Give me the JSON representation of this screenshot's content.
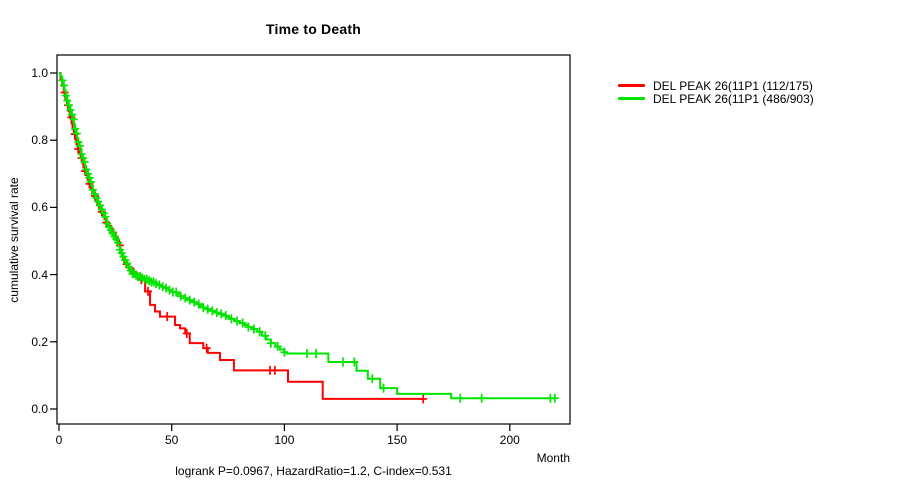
{
  "figure": {
    "title": "Time to Death",
    "background_color": "#ffffff",
    "axis_color": "#000000"
  },
  "chart_data": {
    "type": "line",
    "style": "kaplan-meier-step",
    "title": "Time to Death",
    "xlabel": "Month",
    "ylabel": "cumulative survival rate",
    "annotation": "logrank P=0.0967, HazardRatio=1.2, C-index=0.531",
    "xlim": [
      0,
      227
    ],
    "ylim": [
      0,
      1
    ],
    "x_tick_values": [
      0,
      50,
      100,
      150,
      200
    ],
    "x_tick_labels": [
      "0",
      "50",
      "100",
      "150",
      "200"
    ],
    "y_tick_values": [
      0,
      0.2,
      0.4,
      0.6,
      0.8,
      1
    ],
    "y_tick_labels": [
      "0.0",
      "0.2",
      "0.4",
      "0.6",
      "0.8",
      "1.0"
    ],
    "grid": false,
    "legend_position": "right-outside",
    "series": [
      {
        "name": "DEL PEAK 26(11P1 (112/175)",
        "color": "#ff0000",
        "events_total": "112/175",
        "end_month": 161.6,
        "steps": [
          [
            0,
            1.0
          ],
          [
            0.7,
            0.98
          ],
          [
            1.4,
            0.962
          ],
          [
            2.1,
            0.942
          ],
          [
            2.8,
            0.922
          ],
          [
            3.5,
            0.904
          ],
          [
            4.2,
            0.886
          ],
          [
            4.9,
            0.868
          ],
          [
            5.6,
            0.85
          ],
          [
            6,
            0.833
          ],
          [
            6.6,
            0.818
          ],
          [
            7.2,
            0.803
          ],
          [
            7.8,
            0.788
          ],
          [
            8.4,
            0.774
          ],
          [
            9,
            0.76
          ],
          [
            9.6,
            0.747
          ],
          [
            10.2,
            0.734
          ],
          [
            10.8,
            0.721
          ],
          [
            11.4,
            0.708
          ],
          [
            12,
            0.696
          ],
          [
            12.7,
            0.683
          ],
          [
            13.4,
            0.67
          ],
          [
            14.1,
            0.658
          ],
          [
            14.8,
            0.646
          ],
          [
            15.5,
            0.634
          ],
          [
            16.2,
            0.622
          ],
          [
            17,
            0.61
          ],
          [
            17.8,
            0.598
          ],
          [
            18.6,
            0.587
          ],
          [
            19.4,
            0.576
          ],
          [
            20.2,
            0.565
          ],
          [
            21,
            0.555
          ],
          [
            22,
            0.545
          ],
          [
            23,
            0.535
          ],
          [
            24,
            0.525
          ],
          [
            25,
            0.513
          ],
          [
            26,
            0.5
          ],
          [
            26.6,
            0.487
          ],
          [
            27.2,
            0.473
          ],
          [
            27.8,
            0.459
          ],
          [
            28.4,
            0.445
          ],
          [
            29,
            0.431
          ],
          [
            30.3,
            0.423
          ],
          [
            31.6,
            0.415
          ],
          [
            33,
            0.408
          ],
          [
            34,
            0.4
          ],
          [
            36,
            0.385
          ],
          [
            38.2,
            0.35
          ],
          [
            40.4,
            0.31
          ],
          [
            42.6,
            0.29
          ],
          [
            44.8,
            0.275
          ],
          [
            51.5,
            0.25
          ],
          [
            53.7,
            0.24
          ],
          [
            56,
            0.225
          ],
          [
            58,
            0.196
          ],
          [
            64,
            0.181
          ],
          [
            66,
            0.167
          ],
          [
            71.4,
            0.146
          ],
          [
            77.6,
            0.115
          ],
          [
            101.6,
            0.081
          ],
          [
            117,
            0.03
          ]
        ],
        "censor_months": [
          2.5,
          4,
          5.5,
          7,
          8.5,
          10,
          11.5,
          13.5,
          16,
          19,
          21,
          24,
          27,
          30,
          33,
          36.5,
          39.5,
          48,
          56.7,
          65.5,
          93.6,
          95.8,
          161.6
        ]
      },
      {
        "name": "DEL PEAK 26(11P1 (486/903)",
        "color": "#00e500",
        "events_total": "486/903",
        "end_month": 220,
        "steps": [
          [
            0,
            1.0
          ],
          [
            0.6,
            0.99
          ],
          [
            1.2,
            0.978
          ],
          [
            1.8,
            0.963
          ],
          [
            2.4,
            0.948
          ],
          [
            3,
            0.933
          ],
          [
            3.6,
            0.918
          ],
          [
            4.2,
            0.904
          ],
          [
            4.8,
            0.89
          ],
          [
            5.4,
            0.876
          ],
          [
            6,
            0.862
          ],
          [
            6.6,
            0.848
          ],
          [
            7,
            0.834
          ],
          [
            7.5,
            0.82
          ],
          [
            8,
            0.807
          ],
          [
            8.5,
            0.795
          ],
          [
            9,
            0.783
          ],
          [
            9.5,
            0.771
          ],
          [
            10,
            0.759
          ],
          [
            10.5,
            0.747
          ],
          [
            11,
            0.735
          ],
          [
            11.5,
            0.724
          ],
          [
            12,
            0.713
          ],
          [
            12.6,
            0.7
          ],
          [
            13.2,
            0.688
          ],
          [
            13.8,
            0.676
          ],
          [
            14.4,
            0.664
          ],
          [
            15,
            0.652
          ],
          [
            15.7,
            0.64
          ],
          [
            16.4,
            0.628
          ],
          [
            17.1,
            0.617
          ],
          [
            17.8,
            0.606
          ],
          [
            18.6,
            0.594
          ],
          [
            19.3,
            0.583
          ],
          [
            20,
            0.572
          ],
          [
            20.7,
            0.562
          ],
          [
            21.4,
            0.552
          ],
          [
            22.1,
            0.542
          ],
          [
            22.8,
            0.532
          ],
          [
            23.5,
            0.523
          ],
          [
            24.2,
            0.514
          ],
          [
            24.9,
            0.505
          ],
          [
            25.6,
            0.495
          ],
          [
            26.3,
            0.485
          ],
          [
            27,
            0.474
          ],
          [
            27.7,
            0.464
          ],
          [
            28.4,
            0.453
          ],
          [
            29.1,
            0.443
          ],
          [
            29.8,
            0.433
          ],
          [
            30.5,
            0.423
          ],
          [
            31.2,
            0.412
          ],
          [
            31.9,
            0.403
          ],
          [
            33.5,
            0.398
          ],
          [
            35,
            0.394
          ],
          [
            36.5,
            0.39
          ],
          [
            38,
            0.386
          ],
          [
            39.5,
            0.382
          ],
          [
            41,
            0.378
          ],
          [
            42.5,
            0.373
          ],
          [
            44,
            0.369
          ],
          [
            45.5,
            0.364
          ],
          [
            47,
            0.36
          ],
          [
            48.7,
            0.354
          ],
          [
            50.4,
            0.348
          ],
          [
            52.1,
            0.342
          ],
          [
            53.8,
            0.336
          ],
          [
            55.5,
            0.33
          ],
          [
            57.2,
            0.324
          ],
          [
            58.9,
            0.318
          ],
          [
            60.6,
            0.312
          ],
          [
            62.3,
            0.307
          ],
          [
            64,
            0.302
          ],
          [
            65.7,
            0.297
          ],
          [
            67.4,
            0.292
          ],
          [
            69.1,
            0.287
          ],
          [
            70.8,
            0.283
          ],
          [
            72.5,
            0.278
          ],
          [
            74.2,
            0.273
          ],
          [
            76,
            0.268
          ],
          [
            78,
            0.262
          ],
          [
            80,
            0.256
          ],
          [
            82,
            0.25
          ],
          [
            84,
            0.244
          ],
          [
            86,
            0.238
          ],
          [
            88,
            0.23
          ],
          [
            90,
            0.218
          ],
          [
            92,
            0.207
          ],
          [
            94,
            0.196
          ],
          [
            96,
            0.186
          ],
          [
            98,
            0.177
          ],
          [
            100,
            0.169
          ],
          [
            101,
            0.165
          ],
          [
            119.5,
            0.14
          ],
          [
            132,
            0.114
          ],
          [
            137,
            0.09
          ],
          [
            142.5,
            0.062
          ],
          [
            150,
            0.045
          ],
          [
            174,
            0.032
          ]
        ],
        "censor_months": [
          1.5,
          2.2,
          3,
          3.7,
          4.4,
          5.1,
          5.8,
          6.5,
          7.2,
          7.9,
          8.6,
          9.3,
          10,
          10.7,
          11.4,
          12.1,
          12.8,
          13.5,
          14.2,
          15,
          15.8,
          16.6,
          17.4,
          18.2,
          19,
          19.8,
          20.6,
          21.4,
          22.2,
          23,
          23.8,
          24.6,
          25.4,
          26.2,
          27,
          27.8,
          28.6,
          29.4,
          30.2,
          31,
          31.8,
          32.6,
          33.4,
          34.2,
          35,
          36,
          37,
          38,
          39,
          40,
          41,
          42,
          43,
          44.5,
          46,
          47.5,
          49,
          50.5,
          52,
          54,
          56,
          58,
          60,
          62,
          64,
          66,
          68,
          70,
          72,
          74,
          76.5,
          79,
          81.5,
          84,
          86.5,
          89,
          91.5,
          94,
          97,
          100,
          110,
          114,
          126,
          131,
          139,
          144,
          178,
          187.5,
          218,
          220
        ]
      }
    ]
  }
}
